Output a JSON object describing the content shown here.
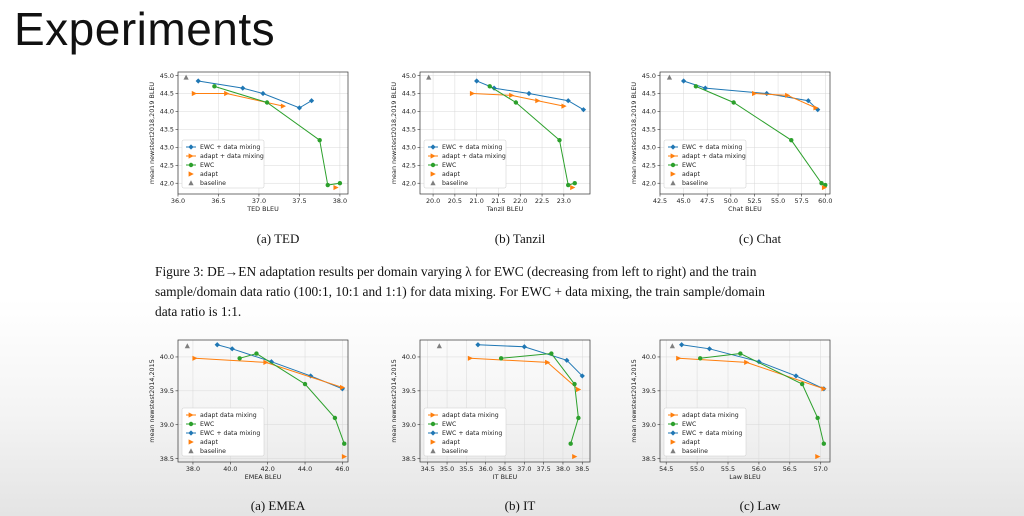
{
  "slide": {
    "title": "Experiments"
  },
  "figure3_caption": {
    "line1": "Figure 3: DE→EN adaptation results per domain varying λ for EWC (decreasing from left to right) and the train",
    "line2": "sample/domain data ratio (100:1, 10:1 and 1:1) for data mixing. For EWC + data mixing, the train sample/domain",
    "line3": "data ratio is 1:1."
  },
  "colors": {
    "blue": "#1f77b4",
    "orange": "#ff7f0e",
    "green": "#2ca02c",
    "gray": "#7f7f7f"
  },
  "chart_data": [
    {
      "id": "ted",
      "type": "line",
      "caption": "(a) TED",
      "xlabel": "TED BLEU",
      "ylabel": "mean newstest2018,2019 BLEU",
      "xlim": [
        36.0,
        38.1
      ],
      "ylim": [
        41.7,
        45.1
      ],
      "xticks": [
        "36.0",
        "36.5",
        "37.0",
        "37.5",
        "38.0"
      ],
      "xtickvals": [
        36.0,
        36.5,
        37.0,
        37.5,
        38.0
      ],
      "yticks": [
        "42.0",
        "42.5",
        "43.0",
        "43.5",
        "44.0",
        "44.5",
        "45.0"
      ],
      "ytickvals": [
        42.0,
        42.5,
        43.0,
        43.5,
        44.0,
        44.5,
        45.0
      ],
      "legend": [
        {
          "label": "EWC + data mixing",
          "series": "ewc_mix"
        },
        {
          "label": "adapt + data mixing",
          "series": "adapt_mix"
        },
        {
          "label": "EWC",
          "series": "ewc"
        },
        {
          "label": "adapt",
          "series": "adapt"
        },
        {
          "label": "baseline",
          "series": "baseline"
        }
      ],
      "legend_loc": "lower-left",
      "series": {
        "ewc_mix": {
          "x": [
            36.25,
            36.8,
            37.05,
            37.5,
            37.65
          ],
          "y": [
            44.85,
            44.65,
            44.5,
            44.1,
            44.3
          ]
        },
        "adapt_mix": {
          "x": [
            36.2,
            36.6,
            37.3
          ],
          "y": [
            44.5,
            44.5,
            44.15
          ]
        },
        "ewc": {
          "x": [
            36.45,
            37.1,
            37.75,
            37.85,
            38.0
          ],
          "y": [
            44.7,
            44.25,
            43.2,
            41.95,
            42.0
          ]
        },
        "adapt": {
          "x": [
            37.95
          ],
          "y": [
            41.88
          ]
        },
        "baseline": {
          "x": [
            36.1
          ],
          "y": [
            44.95
          ]
        }
      }
    },
    {
      "id": "tanzil",
      "type": "line",
      "caption": "(b) Tanzil",
      "xlabel": "Tanzil BLEU",
      "ylabel": "mean newstest2018,2019 BLEU",
      "xlim": [
        19.7,
        23.6
      ],
      "ylim": [
        41.7,
        45.1
      ],
      "xticks": [
        "20.0",
        "20.5",
        "21.0",
        "21.5",
        "22.0",
        "22.5",
        "23.0"
      ],
      "xtickvals": [
        20.0,
        20.5,
        21.0,
        21.5,
        22.0,
        22.5,
        23.0
      ],
      "yticks": [
        "42.0",
        "42.5",
        "43.0",
        "43.5",
        "44.0",
        "44.5",
        "45.0"
      ],
      "ytickvals": [
        42.0,
        42.5,
        43.0,
        43.5,
        44.0,
        44.5,
        45.0
      ],
      "legend": [
        {
          "label": "EWC + data mixing",
          "series": "ewc_mix"
        },
        {
          "label": "adapt + data mixing",
          "series": "adapt_mix"
        },
        {
          "label": "EWC",
          "series": "ewc"
        },
        {
          "label": "adapt",
          "series": "adapt"
        },
        {
          "label": "baseline",
          "series": "baseline"
        }
      ],
      "legend_loc": "lower-left",
      "series": {
        "ewc_mix": {
          "x": [
            21.0,
            21.4,
            22.2,
            23.1,
            23.45
          ],
          "y": [
            44.85,
            44.65,
            44.5,
            44.3,
            44.05
          ]
        },
        "adapt_mix": {
          "x": [
            20.9,
            21.8,
            22.4,
            23.0
          ],
          "y": [
            44.5,
            44.45,
            44.3,
            44.15
          ]
        },
        "ewc": {
          "x": [
            21.3,
            21.9,
            22.9,
            23.1,
            23.25
          ],
          "y": [
            44.7,
            44.25,
            43.2,
            41.95,
            42.0
          ]
        },
        "adapt": {
          "x": [
            23.2
          ],
          "y": [
            41.88
          ]
        },
        "baseline": {
          "x": [
            19.9
          ],
          "y": [
            44.95
          ]
        }
      }
    },
    {
      "id": "chat",
      "type": "line",
      "caption": "(c) Chat",
      "xlabel": "Chat BLEU",
      "ylabel": "mean newstest2018,2019 BLEU",
      "xlim": [
        42.5,
        60.5
      ],
      "ylim": [
        41.7,
        45.1
      ],
      "xticks": [
        "42.5",
        "45.0",
        "47.5",
        "50.0",
        "52.5",
        "55.0",
        "57.5",
        "60.0"
      ],
      "xtickvals": [
        42.5,
        45.0,
        47.5,
        50.0,
        52.5,
        55.0,
        57.5,
        60.0
      ],
      "yticks": [
        "42.0",
        "42.5",
        "43.0",
        "43.5",
        "44.0",
        "44.5",
        "45.0"
      ],
      "ytickvals": [
        42.0,
        42.5,
        43.0,
        43.5,
        44.0,
        44.5,
        45.0
      ],
      "legend": [
        {
          "label": "EWC + data mixing",
          "series": "ewc_mix"
        },
        {
          "label": "adapt + data mixing",
          "series": "adapt_mix"
        },
        {
          "label": "EWC",
          "series": "ewc"
        },
        {
          "label": "adapt",
          "series": "adapt"
        },
        {
          "label": "baseline",
          "series": "baseline"
        }
      ],
      "legend_loc": "lower-left",
      "series": {
        "ewc_mix": {
          "x": [
            45.0,
            47.3,
            53.8,
            58.2,
            59.2
          ],
          "y": [
            44.85,
            44.65,
            44.5,
            44.3,
            44.05
          ]
        },
        "adapt_mix": {
          "x": [
            52.5,
            56.0,
            59.0
          ],
          "y": [
            44.5,
            44.45,
            44.1
          ]
        },
        "ewc": {
          "x": [
            46.3,
            50.3,
            56.4,
            59.6,
            60.0
          ],
          "y": [
            44.7,
            44.25,
            43.2,
            42.0,
            41.95
          ]
        },
        "adapt": {
          "x": [
            59.9
          ],
          "y": [
            41.88
          ]
        },
        "baseline": {
          "x": [
            43.5
          ],
          "y": [
            44.95
          ]
        }
      }
    },
    {
      "id": "emea",
      "type": "line",
      "caption": "(a) EMEA",
      "xlabel": "EMEA BLEU",
      "ylabel": "mean newstest2014,2015",
      "xlim": [
        37.2,
        46.3
      ],
      "ylim": [
        38.45,
        40.25
      ],
      "xticks": [
        "38.0",
        "40.0",
        "42.0",
        "44.0",
        "46.0"
      ],
      "xtickvals": [
        38.0,
        40.0,
        42.0,
        44.0,
        46.0
      ],
      "yticks": [
        "38.5",
        "39.0",
        "39.5",
        "40.0"
      ],
      "ytickvals": [
        38.5,
        39.0,
        39.5,
        40.0
      ],
      "legend": [
        {
          "label": "adapt data mixing",
          "series": "adapt_mix"
        },
        {
          "label": "EWC",
          "series": "ewc"
        },
        {
          "label": "EWC + data mixing",
          "series": "ewc_mix"
        },
        {
          "label": "adapt",
          "series": "adapt"
        },
        {
          "label": "baseline",
          "series": "baseline"
        }
      ],
      "legend_loc": "lower-left",
      "series": {
        "ewc_mix": {
          "x": [
            39.3,
            40.1,
            42.2,
            44.3,
            46.0
          ],
          "y": [
            40.18,
            40.12,
            39.93,
            39.72,
            39.53
          ]
        },
        "adapt_mix": {
          "x": [
            38.1,
            41.9,
            46.0
          ],
          "y": [
            39.98,
            39.92,
            39.55
          ]
        },
        "ewc": {
          "x": [
            40.5,
            41.4,
            44.0,
            45.6,
            46.1
          ],
          "y": [
            39.98,
            40.05,
            39.6,
            39.1,
            38.72
          ]
        },
        "adapt": {
          "x": [
            46.1
          ],
          "y": [
            38.53
          ]
        },
        "baseline": {
          "x": [
            37.7
          ],
          "y": [
            40.16
          ]
        }
      }
    },
    {
      "id": "it",
      "type": "line",
      "caption": "(b) IT",
      "xlabel": "IT BLEU",
      "ylabel": "mean newstest2014,2015",
      "xlim": [
        34.3,
        38.7
      ],
      "ylim": [
        38.45,
        40.25
      ],
      "xticks": [
        "34.5",
        "35.0",
        "35.5",
        "36.0",
        "36.5",
        "37.0",
        "37.5",
        "38.0",
        "38.5"
      ],
      "xtickvals": [
        34.5,
        35.0,
        35.5,
        36.0,
        36.5,
        37.0,
        37.5,
        38.0,
        38.5
      ],
      "yticks": [
        "38.5",
        "39.0",
        "39.5",
        "40.0"
      ],
      "ytickvals": [
        38.5,
        39.0,
        39.5,
        40.0
      ],
      "legend": [
        {
          "label": "adapt data mixing",
          "series": "adapt_mix"
        },
        {
          "label": "EWC",
          "series": "ewc"
        },
        {
          "label": "EWC + data mixing",
          "series": "ewc_mix"
        },
        {
          "label": "adapt",
          "series": "adapt"
        },
        {
          "label": "baseline",
          "series": "baseline"
        }
      ],
      "legend_loc": "lower-left",
      "series": {
        "ewc_mix": {
          "x": [
            35.8,
            37.0,
            38.1,
            38.5
          ],
          "y": [
            40.18,
            40.15,
            39.95,
            39.72
          ]
        },
        "adapt_mix": {
          "x": [
            35.6,
            37.6,
            38.4
          ],
          "y": [
            39.98,
            39.92,
            39.52
          ]
        },
        "ewc": {
          "x": [
            36.4,
            37.7,
            38.3,
            38.4,
            38.2
          ],
          "y": [
            39.98,
            40.05,
            39.6,
            39.1,
            38.72
          ]
        },
        "adapt": {
          "x": [
            38.3
          ],
          "y": [
            38.53
          ]
        },
        "baseline": {
          "x": [
            34.8
          ],
          "y": [
            40.16
          ]
        }
      }
    },
    {
      "id": "law",
      "type": "line",
      "caption": "(c) Law",
      "xlabel": "Law BLEU",
      "ylabel": "mean newstest2014,2015",
      "xlim": [
        54.4,
        57.15
      ],
      "ylim": [
        38.45,
        40.25
      ],
      "xticks": [
        "54.5",
        "55.0",
        "55.5",
        "56.0",
        "56.5",
        "57.0"
      ],
      "xtickvals": [
        54.5,
        55.0,
        55.5,
        56.0,
        56.5,
        57.0
      ],
      "yticks": [
        "38.5",
        "39.0",
        "39.5",
        "40.0"
      ],
      "ytickvals": [
        38.5,
        39.0,
        39.5,
        40.0
      ],
      "legend": [
        {
          "label": "adapt data mixing",
          "series": "adapt_mix"
        },
        {
          "label": "EWC",
          "series": "ewc"
        },
        {
          "label": "EWC + data mixing",
          "series": "ewc_mix"
        },
        {
          "label": "adapt",
          "series": "adapt"
        },
        {
          "label": "baseline",
          "series": "baseline"
        }
      ],
      "legend_loc": "lower-left",
      "series": {
        "ewc_mix": {
          "x": [
            54.75,
            55.2,
            56.0,
            56.6,
            57.05
          ],
          "y": [
            40.18,
            40.12,
            39.93,
            39.72,
            39.53
          ]
        },
        "adapt_mix": {
          "x": [
            54.7,
            55.8,
            57.05
          ],
          "y": [
            39.98,
            39.92,
            39.53
          ]
        },
        "ewc": {
          "x": [
            55.05,
            55.7,
            56.7,
            56.95,
            57.05
          ],
          "y": [
            39.98,
            40.05,
            39.6,
            39.1,
            38.72
          ]
        },
        "adapt": {
          "x": [
            56.95
          ],
          "y": [
            38.53
          ]
        },
        "baseline": {
          "x": [
            54.6
          ],
          "y": [
            40.16
          ]
        }
      }
    }
  ]
}
